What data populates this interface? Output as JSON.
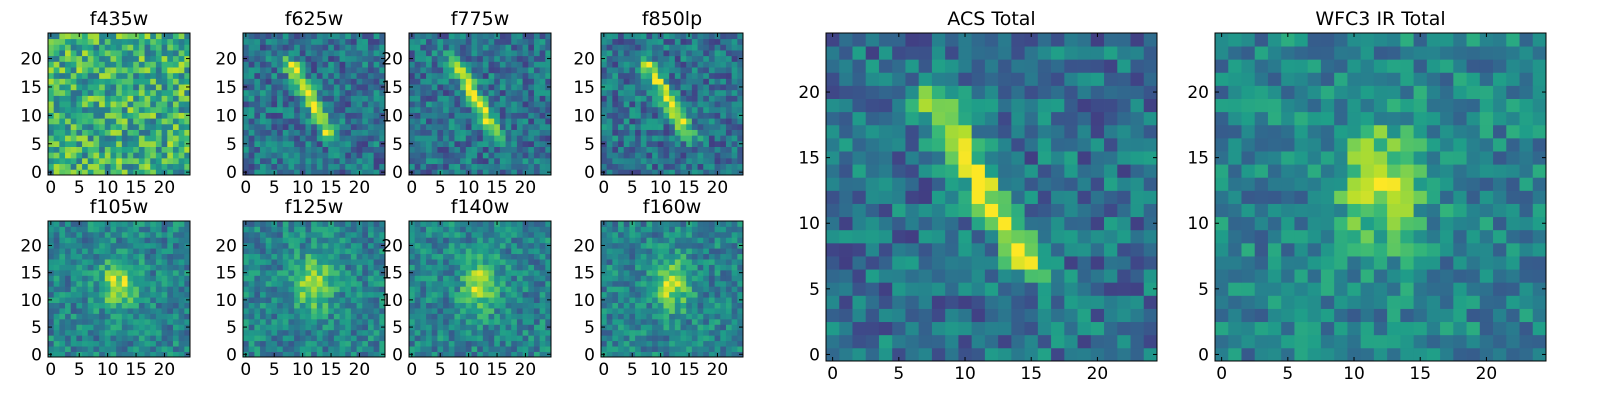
{
  "chart_data": [
    {
      "type": "heatmap",
      "title": "f435w",
      "extent": [
        -0.5,
        24.5,
        -0.5,
        24.5
      ],
      "xticks": [
        0,
        5,
        10,
        15,
        20
      ],
      "yticks": [
        0,
        5,
        10,
        15,
        20
      ],
      "colormap": "viridis",
      "source": {
        "kind": "noise",
        "seed": 11
      }
    },
    {
      "type": "heatmap",
      "title": "f625w",
      "extent": [
        -0.5,
        24.5,
        -0.5,
        24.5
      ],
      "xticks": [
        0,
        5,
        10,
        15,
        20
      ],
      "yticks": [
        0,
        5,
        10,
        15,
        20
      ],
      "colormap": "viridis",
      "source": {
        "kind": "streak",
        "seed": 12
      }
    },
    {
      "type": "heatmap",
      "title": "f775w",
      "extent": [
        -0.5,
        24.5,
        -0.5,
        24.5
      ],
      "xticks": [
        0,
        5,
        10,
        15,
        20
      ],
      "yticks": [
        0,
        5,
        10,
        15,
        20
      ],
      "colormap": "viridis",
      "source": {
        "kind": "streak",
        "seed": 13
      }
    },
    {
      "type": "heatmap",
      "title": "f850lp",
      "extent": [
        -0.5,
        24.5,
        -0.5,
        24.5
      ],
      "xticks": [
        0,
        5,
        10,
        15,
        20
      ],
      "yticks": [
        0,
        5,
        10,
        15,
        20
      ],
      "colormap": "viridis",
      "source": {
        "kind": "streak",
        "seed": 14
      }
    },
    {
      "type": "heatmap",
      "title": "f105w",
      "extent": [
        -0.5,
        24.5,
        -0.5,
        24.5
      ],
      "xticks": [
        0,
        5,
        10,
        15,
        20
      ],
      "yticks": [
        0,
        5,
        10,
        15,
        20
      ],
      "colormap": "viridis",
      "source": {
        "kind": "blob",
        "seed": 21
      }
    },
    {
      "type": "heatmap",
      "title": "f125w",
      "extent": [
        -0.5,
        24.5,
        -0.5,
        24.5
      ],
      "xticks": [
        0,
        5,
        10,
        15,
        20
      ],
      "yticks": [
        0,
        5,
        10,
        15,
        20
      ],
      "colormap": "viridis",
      "source": {
        "kind": "blob",
        "seed": 22
      }
    },
    {
      "type": "heatmap",
      "title": "f140w",
      "extent": [
        -0.5,
        24.5,
        -0.5,
        24.5
      ],
      "xticks": [
        0,
        5,
        10,
        15,
        20
      ],
      "yticks": [
        0,
        5,
        10,
        15,
        20
      ],
      "colormap": "viridis",
      "source": {
        "kind": "blob",
        "seed": 23
      }
    },
    {
      "type": "heatmap",
      "title": "f160w",
      "extent": [
        -0.5,
        24.5,
        -0.5,
        24.5
      ],
      "xticks": [
        0,
        5,
        10,
        15,
        20
      ],
      "yticks": [
        0,
        5,
        10,
        15,
        20
      ],
      "colormap": "viridis",
      "source": {
        "kind": "blob",
        "seed": 24
      }
    },
    {
      "type": "heatmap",
      "title": "ACS Total",
      "extent": [
        -0.5,
        24.5,
        -0.5,
        24.5
      ],
      "xticks": [
        0,
        5,
        10,
        15,
        20
      ],
      "yticks": [
        0,
        5,
        10,
        15,
        20
      ],
      "colormap": "viridis",
      "source": {
        "kind": "streak",
        "seed": 31
      }
    },
    {
      "type": "heatmap",
      "title": "WFC3 IR Total",
      "extent": [
        -0.5,
        24.5,
        -0.5,
        24.5
      ],
      "xticks": [
        0,
        5,
        10,
        15,
        20
      ],
      "yticks": [
        0,
        5,
        10,
        15,
        20
      ],
      "colormap": "viridis",
      "source": {
        "kind": "blob",
        "seed": 32
      }
    }
  ]
}
